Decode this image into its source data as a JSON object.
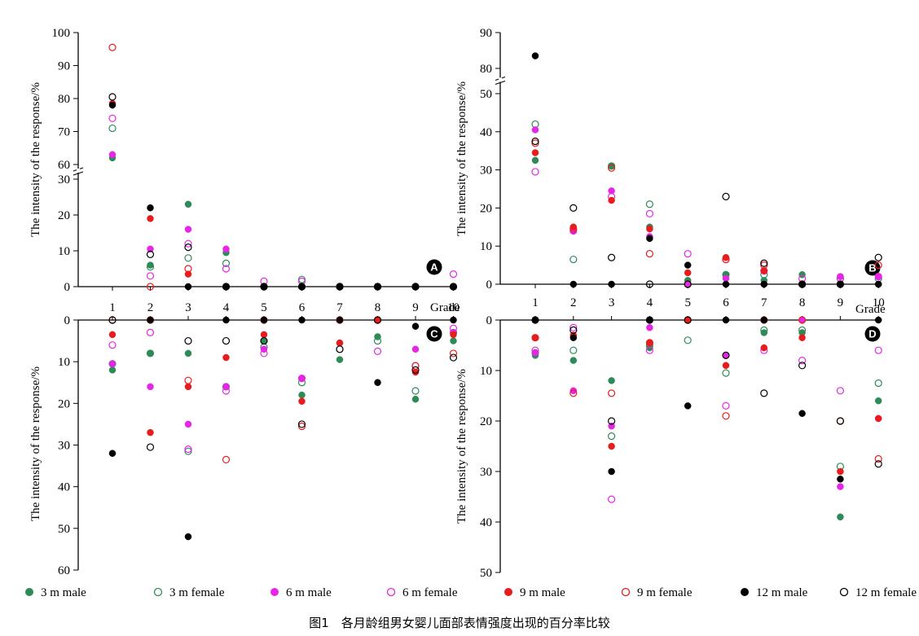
{
  "caption": "图1　各月龄组男女婴儿面部表情强度出现的百分率比较",
  "series": [
    {
      "name": "3 m male",
      "color": "#2e8b57",
      "filled": true
    },
    {
      "name": "3 m female",
      "color": "#2e8b57",
      "filled": false
    },
    {
      "name": "6 m male",
      "color": "#e626e6",
      "filled": true
    },
    {
      "name": "6 m female",
      "color": "#e626e6",
      "filled": false
    },
    {
      "name": "9 m male",
      "color": "#e81c1c",
      "filled": true
    },
    {
      "name": "9 m female",
      "color": "#e81c1c",
      "filled": false
    },
    {
      "name": "12 m male",
      "color": "#000000",
      "filled": true
    },
    {
      "name": "12 m  female",
      "color": "#000000",
      "filled": false
    }
  ],
  "chart_data": [
    {
      "panel": "A",
      "type": "scatter",
      "direction": "up",
      "xlabel": "Grade",
      "ylabel": "The intensity of the response/%",
      "x_ticks": [
        "1",
        "2",
        "3",
        "4",
        "5",
        "6",
        "7",
        "8",
        "9",
        "10"
      ],
      "y_break": {
        "lower": [
          0,
          30
        ],
        "upper": [
          60,
          100
        ]
      },
      "y_ticks_lower": [
        0,
        10,
        20,
        30
      ],
      "y_ticks_upper": [
        60,
        70,
        80,
        90,
        100
      ],
      "series_values": [
        [
          62,
          6,
          23,
          9.5,
          0,
          0,
          0,
          0,
          0,
          0
        ],
        [
          71,
          5.5,
          8,
          6.5,
          0,
          2,
          0,
          0,
          0,
          0
        ],
        [
          63,
          10.5,
          16,
          10.5,
          0,
          0,
          0,
          0,
          0,
          0
        ],
        [
          74,
          3,
          12,
          5,
          1.5,
          1.5,
          0,
          0,
          0,
          3.5
        ],
        [
          78.5,
          19,
          3.5,
          0,
          0,
          0,
          0,
          0,
          0,
          0
        ],
        [
          95.5,
          0,
          5,
          0,
          0,
          0,
          0,
          0,
          0,
          0
        ],
        [
          78,
          22,
          0,
          0,
          0,
          0,
          0,
          0,
          0,
          0
        ],
        [
          80.5,
          9,
          11,
          0,
          0,
          0,
          0,
          0,
          0,
          0
        ]
      ]
    },
    {
      "panel": "B",
      "type": "scatter",
      "direction": "up",
      "xlabel": "Grade",
      "ylabel": "The intensity of the response/%",
      "x_ticks": [
        "1",
        "2",
        "3",
        "4",
        "5",
        "6",
        "7",
        "8",
        "9",
        "10"
      ],
      "y_break": {
        "lower": [
          0,
          50
        ],
        "upper": [
          80,
          90
        ]
      },
      "y_ticks_lower": [
        0,
        10,
        20,
        30,
        40,
        50
      ],
      "y_ticks_upper": [
        80,
        90
      ],
      "series_values": [
        [
          32.5,
          14.5,
          31,
          15,
          1,
          2.5,
          1,
          2.5,
          2,
          2
        ],
        [
          42,
          6.5,
          31,
          21,
          0,
          2.5,
          2.5,
          0,
          1.5,
          1.5
        ],
        [
          40.5,
          14,
          24.5,
          12.5,
          0,
          1.5,
          0,
          0,
          2,
          2
        ],
        [
          29.5,
          14,
          23,
          18.5,
          8,
          6.5,
          3.5,
          1.5,
          1.5,
          2
        ],
        [
          34.5,
          15,
          22,
          14.5,
          3,
          7,
          3.5,
          0,
          0,
          0
        ],
        [
          37,
          14.5,
          30.5,
          8,
          0,
          6.5,
          5,
          0,
          0,
          5
        ],
        [
          83.5,
          0,
          0,
          12,
          5,
          0,
          0,
          0,
          0,
          0
        ],
        [
          37.5,
          20,
          7,
          0,
          0,
          23,
          5.5,
          0,
          0,
          7
        ]
      ]
    },
    {
      "panel": "C",
      "type": "scatter",
      "direction": "down",
      "xlabel": "",
      "ylabel": "The intensity of the response/%",
      "x_ticks": [
        "1",
        "2",
        "3",
        "4",
        "5",
        "6",
        "7",
        "8",
        "9",
        "10"
      ],
      "ylim": [
        0,
        60
      ],
      "y_ticks": [
        0,
        10,
        20,
        30,
        40,
        50,
        60
      ],
      "series_values": [
        [
          12,
          8,
          8,
          16,
          5,
          18,
          9.5,
          4,
          19,
          5
        ],
        [
          10.5,
          8,
          31.5,
          16,
          6.5,
          15,
          7,
          5,
          17,
          3
        ],
        [
          10.5,
          16,
          25,
          16,
          7,
          14,
          5.5,
          0,
          7,
          3
        ],
        [
          6,
          3,
          31,
          17,
          8,
          14,
          0,
          7.5,
          11,
          2
        ],
        [
          3.5,
          27,
          16,
          9,
          3.5,
          19.5,
          5.5,
          0,
          12.5,
          3.5
        ],
        [
          0,
          0,
          14.5,
          33.5,
          0,
          25.5,
          0,
          0,
          11,
          8
        ],
        [
          32,
          0,
          52,
          0,
          0,
          0,
          0,
          15,
          1.5,
          0
        ],
        [
          0,
          30.5,
          5,
          5,
          5,
          25,
          7,
          0,
          12,
          9
        ]
      ]
    },
    {
      "panel": "D",
      "type": "scatter",
      "direction": "down",
      "xlabel": "",
      "ylabel": "The intensity of the response/%",
      "x_ticks": [
        "1",
        "2",
        "3",
        "4",
        "5",
        "6",
        "7",
        "8",
        "9",
        "10"
      ],
      "ylim": [
        0,
        50
      ],
      "y_ticks": [
        0,
        10,
        20,
        30,
        40,
        50
      ],
      "series_values": [
        [
          7,
          8,
          12,
          5.5,
          0,
          7,
          2.5,
          2.5,
          39,
          16
        ],
        [
          6.5,
          6,
          23,
          5,
          4,
          10.5,
          2,
          2,
          29,
          12.5
        ],
        [
          6.5,
          14,
          21,
          1.5,
          0,
          7,
          0,
          0,
          33,
          19.5
        ],
        [
          6,
          1.5,
          35.5,
          6,
          0,
          17,
          6,
          8,
          14,
          6
        ],
        [
          3.5,
          3,
          25,
          4.5,
          0,
          9,
          5.5,
          3.5,
          30,
          19.5
        ],
        [
          3.5,
          14.5,
          14.5,
          4.5,
          0,
          19,
          0,
          0,
          20,
          27.5
        ],
        [
          0,
          3.5,
          30,
          0,
          17,
          0,
          0,
          18.5,
          31.5,
          0
        ],
        [
          0,
          2,
          20,
          0,
          0,
          7,
          14.5,
          9,
          20,
          28.5
        ]
      ]
    }
  ]
}
